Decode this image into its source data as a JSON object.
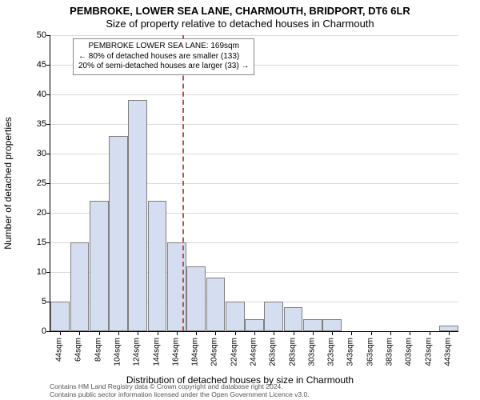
{
  "title1": "PEMBROKE, LOWER SEA LANE, CHARMOUTH, BRIDPORT, DT6 6LR",
  "title2": "Size of property relative to detached houses in Charmouth",
  "ylabel": "Number of detached properties",
  "xlabel": "Distribution of detached houses by size in Charmouth",
  "chart": {
    "type": "histogram",
    "ylim": [
      0,
      50
    ],
    "ytick_step": 5,
    "yticks": [
      0,
      5,
      10,
      15,
      20,
      25,
      30,
      35,
      40,
      45,
      50
    ],
    "x_categories": [
      "44sqm",
      "64sqm",
      "84sqm",
      "104sqm",
      "124sqm",
      "144sqm",
      "164sqm",
      "184sqm",
      "204sqm",
      "224sqm",
      "244sqm",
      "263sqm",
      "283sqm",
      "303sqm",
      "323sqm",
      "343sqm",
      "363sqm",
      "383sqm",
      "403sqm",
      "423sqm",
      "443sqm"
    ],
    "bar_values": [
      5,
      15,
      22,
      33,
      39,
      22,
      15,
      11,
      9,
      5,
      2,
      5,
      4,
      2,
      2,
      0,
      0,
      0,
      0,
      0,
      1
    ],
    "bar_color": "#d5def0",
    "bar_border_color": "#7f7f7f",
    "grid_color": "#d9d9d9",
    "background_color": "#ffffff",
    "vline_x_index": 6.3,
    "vline_color": "#c0504d",
    "label_fontsize": 12,
    "tick_fontsize": 11
  },
  "note": {
    "line1": "PEMBROKE LOWER SEA LANE: 169sqm",
    "line2": "← 80% of detached houses are smaller (133)",
    "line3": "20% of semi-detached houses are larger (33) →"
  },
  "footer": {
    "line1": "Contains HM Land Registry data © Crown copyright and database right 2024.",
    "line2": "Contains public sector information licensed under the Open Government Licence v3.0."
  }
}
